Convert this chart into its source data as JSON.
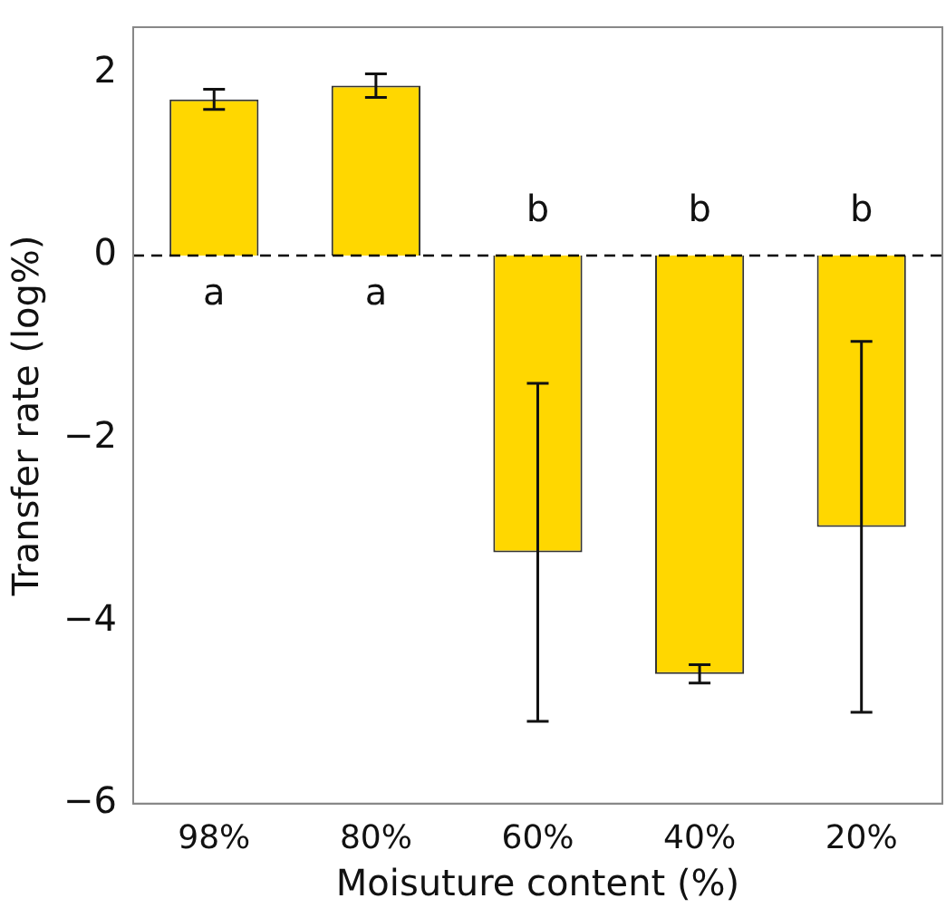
{
  "chart_data": {
    "type": "bar",
    "xlabel": "Moisuture content (%)",
    "ylabel": "Transfer rate (log%)",
    "categories": [
      "98%",
      "80%",
      "60%",
      "40%",
      "20%"
    ],
    "values": [
      1.71,
      1.86,
      -3.25,
      -4.58,
      -2.97
    ],
    "errors": [
      0.11,
      0.13,
      1.85,
      0.1,
      2.03
    ],
    "color": "#ffd700",
    "ylim": [
      -6,
      2.5
    ],
    "yticks": [
      -6,
      -4,
      -2,
      0,
      2
    ],
    "grid": false,
    "legend": false,
    "ref_lines": [
      {
        "axis": "y",
        "value": 0,
        "color": "#000000",
        "line_style": "dashed"
      }
    ],
    "annotations": [
      "a",
      "a",
      "b",
      "b",
      "b"
    ]
  }
}
